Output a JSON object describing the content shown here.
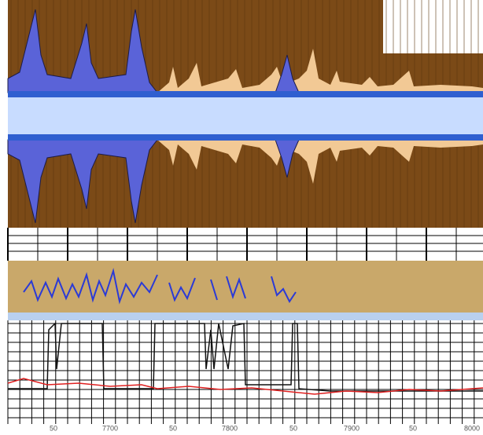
{
  "axis": {
    "labels": [
      "50",
      "7700",
      "50",
      "7800",
      "50",
      "7900",
      "50",
      "8000"
    ]
  }
}
